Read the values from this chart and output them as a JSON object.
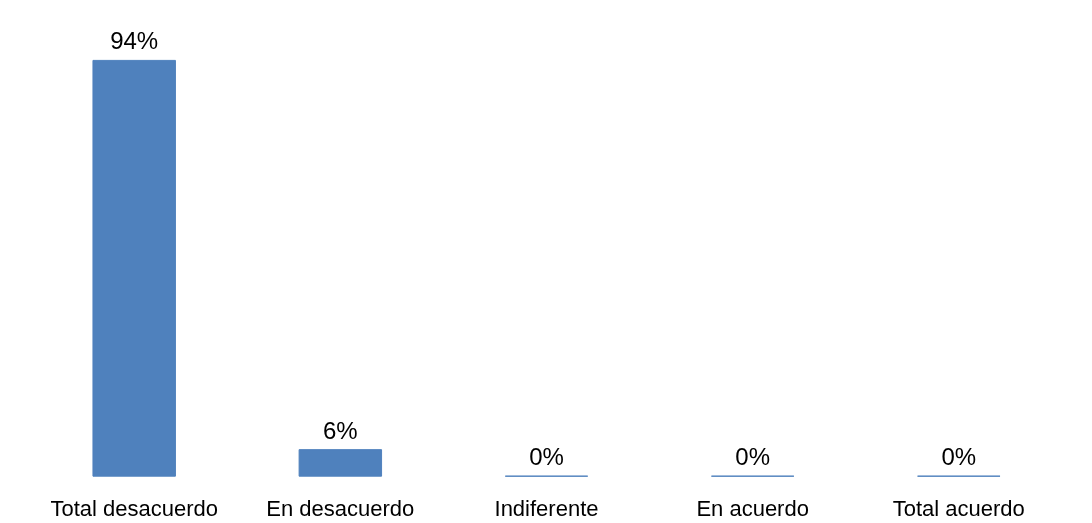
{
  "chart_data": {
    "type": "bar",
    "categories": [
      "Total desacuerdo",
      "En desacuerdo",
      "Indiferente",
      "En acuerdo",
      "Total acuerdo"
    ],
    "values": [
      94,
      6,
      0,
      0,
      0
    ],
    "value_labels": [
      "94%",
      "6%",
      "0%",
      "0%",
      "0%"
    ],
    "color": "#4f81bd",
    "grid": false
  }
}
